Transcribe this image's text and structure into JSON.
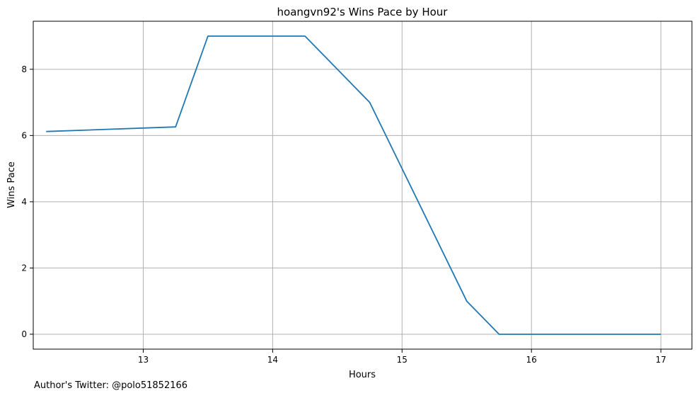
{
  "chart_data": {
    "type": "line",
    "title": "hoangvn92's Wins Pace by Hour",
    "xlabel": "Hours",
    "ylabel": "Wins Pace",
    "xlim": [
      12.15,
      17.24
    ],
    "ylim": [
      -0.45,
      9.45
    ],
    "xticks": [
      13,
      14,
      15,
      16,
      17
    ],
    "yticks": [
      0,
      2,
      4,
      6,
      8
    ],
    "grid": true,
    "line_color": "#1f77b4",
    "series": [
      {
        "x": [
          12.25,
          13.25,
          13.5,
          14.25,
          14.75,
          15.0,
          15.5,
          15.75,
          17.0
        ],
        "y": [
          6.12,
          6.26,
          9.0,
          9.0,
          7.0,
          5.0,
          1.0,
          0.0,
          0.0
        ]
      }
    ]
  },
  "footer": {
    "text": "Author's Twitter: @polo51852166"
  }
}
